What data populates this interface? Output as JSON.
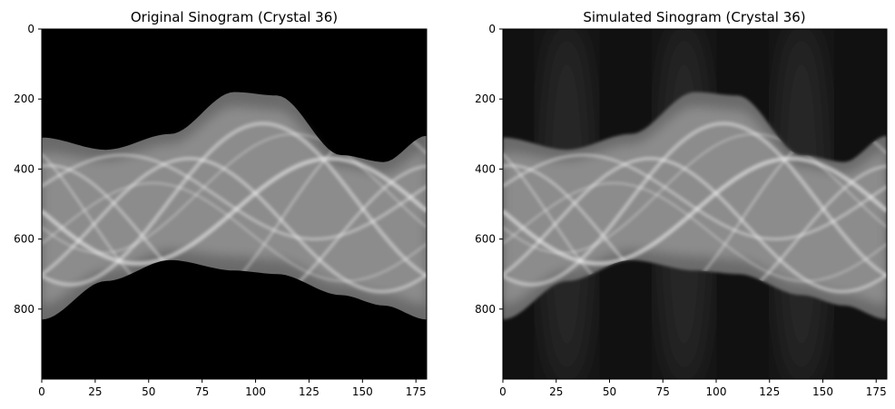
{
  "chart_data": [
    {
      "type": "heatmap",
      "title": "Original Sinogram (Crystal 36)",
      "colormap": "gray",
      "background": "black",
      "xlim": [
        0,
        180
      ],
      "ylim": [
        1000,
        0
      ],
      "xticks": [
        0,
        25,
        50,
        75,
        100,
        125,
        150,
        175
      ],
      "xtick_labels": [
        "0",
        "25",
        "50",
        "75",
        "100",
        "125",
        "150",
        "175"
      ],
      "yticks": [
        0,
        200,
        400,
        600,
        800
      ],
      "ytick_labels": [
        "0",
        "200",
        "400",
        "600",
        "800"
      ],
      "upper_boundary": [
        [
          0,
          310
        ],
        [
          30,
          345
        ],
        [
          60,
          300
        ],
        [
          90,
          180
        ],
        [
          110,
          190
        ],
        [
          140,
          360
        ],
        [
          160,
          380
        ],
        [
          180,
          305
        ]
      ],
      "lower_boundary": [
        [
          0,
          830
        ],
        [
          30,
          720
        ],
        [
          60,
          660
        ],
        [
          90,
          690
        ],
        [
          110,
          700
        ],
        [
          140,
          760
        ],
        [
          160,
          790
        ],
        [
          180,
          830
        ]
      ]
    },
    {
      "type": "heatmap",
      "title": "Simulated Sinogram (Crystal 36)",
      "colormap": "gray",
      "background": "dark-gray",
      "xlim": [
        0,
        180
      ],
      "ylim": [
        1000,
        0
      ],
      "xticks": [
        0,
        25,
        50,
        75,
        100,
        125,
        150,
        175
      ],
      "xtick_labels": [
        "0",
        "25",
        "50",
        "75",
        "100",
        "125",
        "150",
        "175"
      ],
      "yticks": [
        0,
        200,
        400,
        600,
        800
      ],
      "ytick_labels": [
        "0",
        "200",
        "400",
        "600",
        "800"
      ],
      "upper_boundary": [
        [
          0,
          310
        ],
        [
          30,
          345
        ],
        [
          60,
          300
        ],
        [
          90,
          180
        ],
        [
          110,
          190
        ],
        [
          140,
          360
        ],
        [
          160,
          380
        ],
        [
          180,
          305
        ]
      ],
      "lower_boundary": [
        [
          0,
          830
        ],
        [
          30,
          720
        ],
        [
          60,
          660
        ],
        [
          90,
          690
        ],
        [
          110,
          700
        ],
        [
          140,
          760
        ],
        [
          160,
          790
        ],
        [
          180,
          830
        ]
      ]
    }
  ]
}
